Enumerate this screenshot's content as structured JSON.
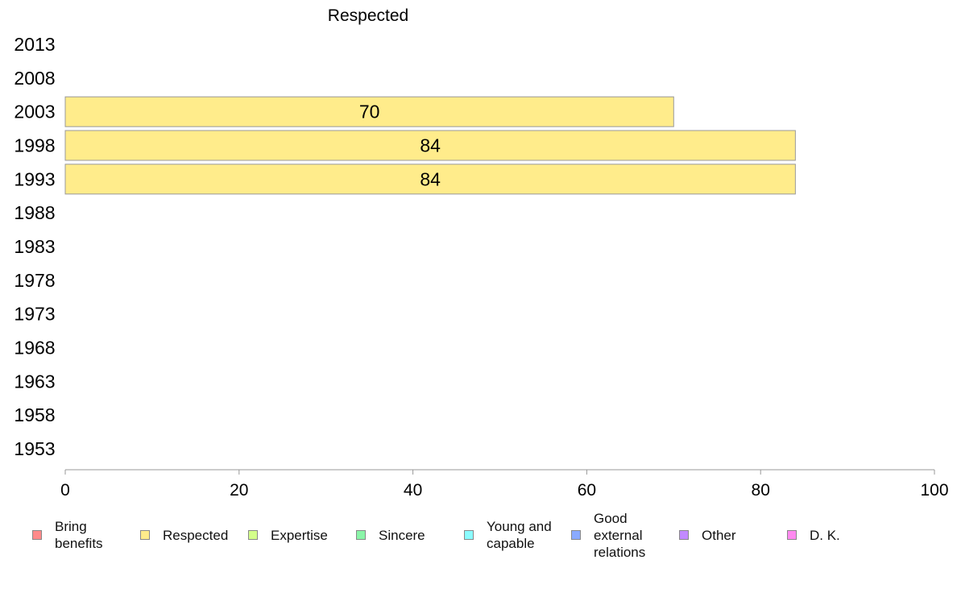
{
  "chart_data": {
    "type": "bar",
    "orientation": "horizontal",
    "title": "Respected",
    "categories": [
      "2013",
      "2008",
      "2003",
      "1998",
      "1993",
      "1988",
      "1983",
      "1978",
      "1973",
      "1968",
      "1963",
      "1958",
      "1953"
    ],
    "series": [
      {
        "name": "Respected",
        "values": [
          null,
          null,
          70,
          84,
          84,
          null,
          null,
          null,
          null,
          null,
          null,
          null,
          null
        ],
        "color": "#ffec8b"
      }
    ],
    "data_labels": [
      null,
      null,
      "70",
      "84",
      "84",
      null,
      null,
      null,
      null,
      null,
      null,
      null,
      null
    ],
    "x_ticks": [
      "0",
      "20",
      "40",
      "60",
      "80",
      "100"
    ],
    "xlim": [
      0,
      100
    ],
    "grid": false,
    "legend_position": "bottom",
    "legend": [
      {
        "label": "Bring\nbenefits",
        "color": "#ff8a8a"
      },
      {
        "label": "Respected",
        "color": "#ffec8b"
      },
      {
        "label": "Expertise",
        "color": "#d4ff8a"
      },
      {
        "label": "Sincere",
        "color": "#8af5a8"
      },
      {
        "label": "Young and\ncapable",
        "color": "#8afcff"
      },
      {
        "label": "Good\nexternal\nrelations",
        "color": "#8aaaff"
      },
      {
        "label": "Other",
        "color": "#c28aff"
      },
      {
        "label": "D. K.",
        "color": "#ff8af0"
      }
    ]
  }
}
